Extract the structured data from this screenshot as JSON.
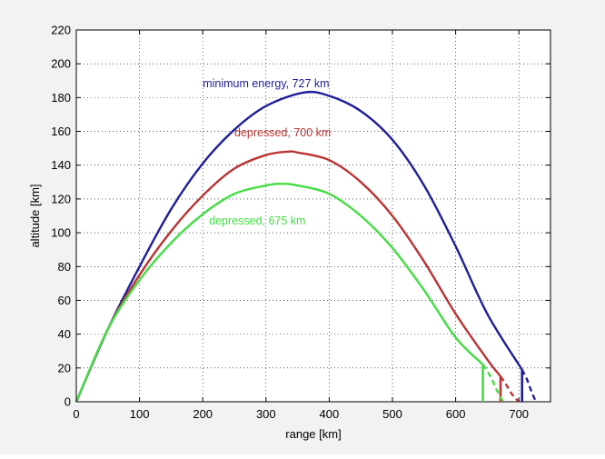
{
  "chart_data": {
    "type": "line",
    "title": "",
    "xlabel": "range [km]",
    "ylabel": "altitude [km]",
    "xlim": [
      0,
      750
    ],
    "ylim": [
      0,
      220
    ],
    "xticks": [
      0,
      100,
      200,
      300,
      400,
      500,
      600,
      700
    ],
    "yticks": [
      0,
      20,
      40,
      60,
      80,
      100,
      120,
      140,
      160,
      180,
      200,
      220
    ],
    "grid": true,
    "series": [
      {
        "name": "minimum energy, 727 km",
        "color": "#1f1f99",
        "solid": [
          [
            0,
            0
          ],
          [
            50,
            43
          ],
          [
            100,
            80
          ],
          [
            150,
            114
          ],
          [
            200,
            141
          ],
          [
            250,
            161
          ],
          [
            300,
            175
          ],
          [
            360,
            183
          ],
          [
            400,
            181
          ],
          [
            450,
            172
          ],
          [
            500,
            155
          ],
          [
            550,
            128
          ],
          [
            600,
            92
          ],
          [
            650,
            52
          ],
          [
            705,
            19
          ]
        ],
        "dashed": [
          [
            705,
            19
          ],
          [
            713,
            13
          ],
          [
            720,
            6
          ],
          [
            727,
            0
          ]
        ],
        "drop_x": 705
      },
      {
        "name": "depressed, 700 km",
        "color": "#bb3333",
        "solid": [
          [
            0,
            0
          ],
          [
            50,
            43
          ],
          [
            100,
            75
          ],
          [
            150,
            101
          ],
          [
            200,
            122
          ],
          [
            250,
            138
          ],
          [
            300,
            146
          ],
          [
            335,
            148
          ],
          [
            350,
            147.5
          ],
          [
            400,
            143
          ],
          [
            450,
            130
          ],
          [
            500,
            110
          ],
          [
            550,
            83
          ],
          [
            600,
            52
          ],
          [
            650,
            25
          ],
          [
            671,
            15
          ]
        ],
        "dashed": [
          [
            671,
            15
          ],
          [
            680,
            10
          ],
          [
            690,
            4
          ],
          [
            700,
            0
          ]
        ],
        "drop_x": 671
      },
      {
        "name": "depressed, 675 km",
        "color": "#44dd44",
        "solid": [
          [
            0,
            0
          ],
          [
            50,
            43
          ],
          [
            100,
            72
          ],
          [
            150,
            94
          ],
          [
            200,
            111
          ],
          [
            250,
            123
          ],
          [
            300,
            128
          ],
          [
            325,
            129
          ],
          [
            350,
            128
          ],
          [
            400,
            123
          ],
          [
            450,
            110
          ],
          [
            500,
            91
          ],
          [
            550,
            66
          ],
          [
            600,
            38
          ],
          [
            643,
            22
          ]
        ],
        "dashed": [
          [
            643,
            22
          ],
          [
            655,
            15
          ],
          [
            665,
            7
          ],
          [
            675,
            0
          ]
        ],
        "drop_x": 643
      }
    ],
    "annotations": [
      {
        "text": "minimum energy, 727 km",
        "x": 200,
        "y": 186,
        "color": "#1f1f99"
      },
      {
        "text": "depressed, 700 km",
        "x": 250,
        "y": 157,
        "color": "#bb3333"
      },
      {
        "text": "depressed, 675 km",
        "x": 210,
        "y": 105,
        "color": "#44dd44"
      }
    ]
  }
}
